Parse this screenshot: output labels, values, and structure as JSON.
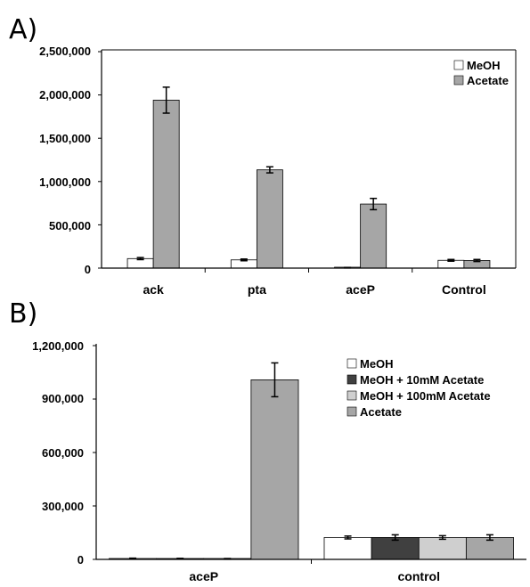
{
  "chart_data": [
    {
      "panel_label": "A)",
      "type": "bar",
      "categories": [
        "ack",
        "pta",
        "aceP",
        "Control"
      ],
      "series": [
        {
          "name": "MeOH",
          "color": "#ffffff",
          "values": [
            110000,
            95000,
            5000,
            90000
          ],
          "errors": [
            12000,
            10000,
            3000,
            10000
          ]
        },
        {
          "name": "Acetate",
          "color": "#a6a6a6",
          "values": [
            1940000,
            1135000,
            740000,
            88000
          ],
          "errors": [
            150000,
            35000,
            65000,
            12000
          ]
        }
      ],
      "yticks": [
        "2,500,000",
        "2,000,000",
        "1,500,000",
        "1,000,000",
        "500,000",
        "0"
      ],
      "ylim": [
        0,
        2500000
      ],
      "legend_position": "top-right",
      "grid": false
    },
    {
      "panel_label": "B)",
      "type": "bar",
      "categories": [
        "aceP",
        "control"
      ],
      "series": [
        {
          "name": "MeOH",
          "color": "#ffffff",
          "values": [
            5000,
            123000
          ],
          "errors": [
            2000,
            8000
          ]
        },
        {
          "name": "MeOH + 10mM Acetate",
          "color": "#404040",
          "values": [
            4000,
            123000
          ],
          "errors": [
            2000,
            15000
          ]
        },
        {
          "name": "MeOH + 100mM Acetate",
          "color": "#cfcfcf",
          "values": [
            3000,
            123000
          ],
          "errors": [
            2000,
            10000
          ]
        },
        {
          "name": "Acetate",
          "color": "#a6a6a6",
          "values": [
            1008000,
            123000
          ],
          "errors": [
            95000,
            15000
          ]
        }
      ],
      "yticks": [
        "1,200,000",
        "900,000",
        "600,000",
        "300,000",
        "0"
      ],
      "ylim": [
        0,
        1200000
      ],
      "legend_position": "top-right",
      "grid": false
    }
  ]
}
